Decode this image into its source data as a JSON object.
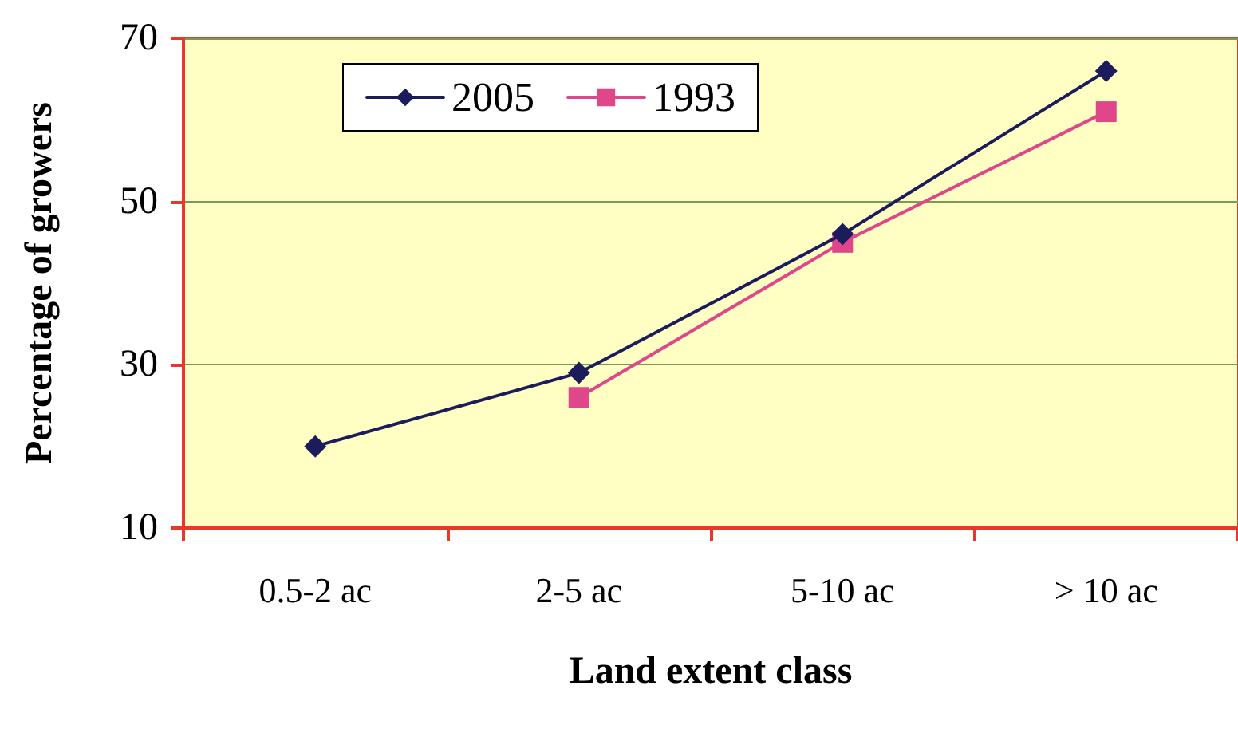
{
  "chart_data": {
    "type": "line",
    "xlabel": "Land extent class",
    "ylabel": "Percentage of growers",
    "categories": [
      "0.5-2 ac",
      "2-5 ac",
      "5-10 ac",
      "> 10 ac"
    ],
    "series": [
      {
        "name": "2005",
        "color": "#1c1c5c",
        "marker": "diamond",
        "values": [
          20,
          29,
          46,
          66
        ]
      },
      {
        "name": "1993",
        "color": "#e0468a",
        "marker": "square",
        "values": [
          null,
          26,
          45,
          61
        ]
      }
    ],
    "ylim": [
      10,
      70
    ],
    "yticks": [
      10,
      30,
      50,
      70
    ],
    "grid": "y",
    "legend": "top left",
    "line_style": "solid"
  }
}
